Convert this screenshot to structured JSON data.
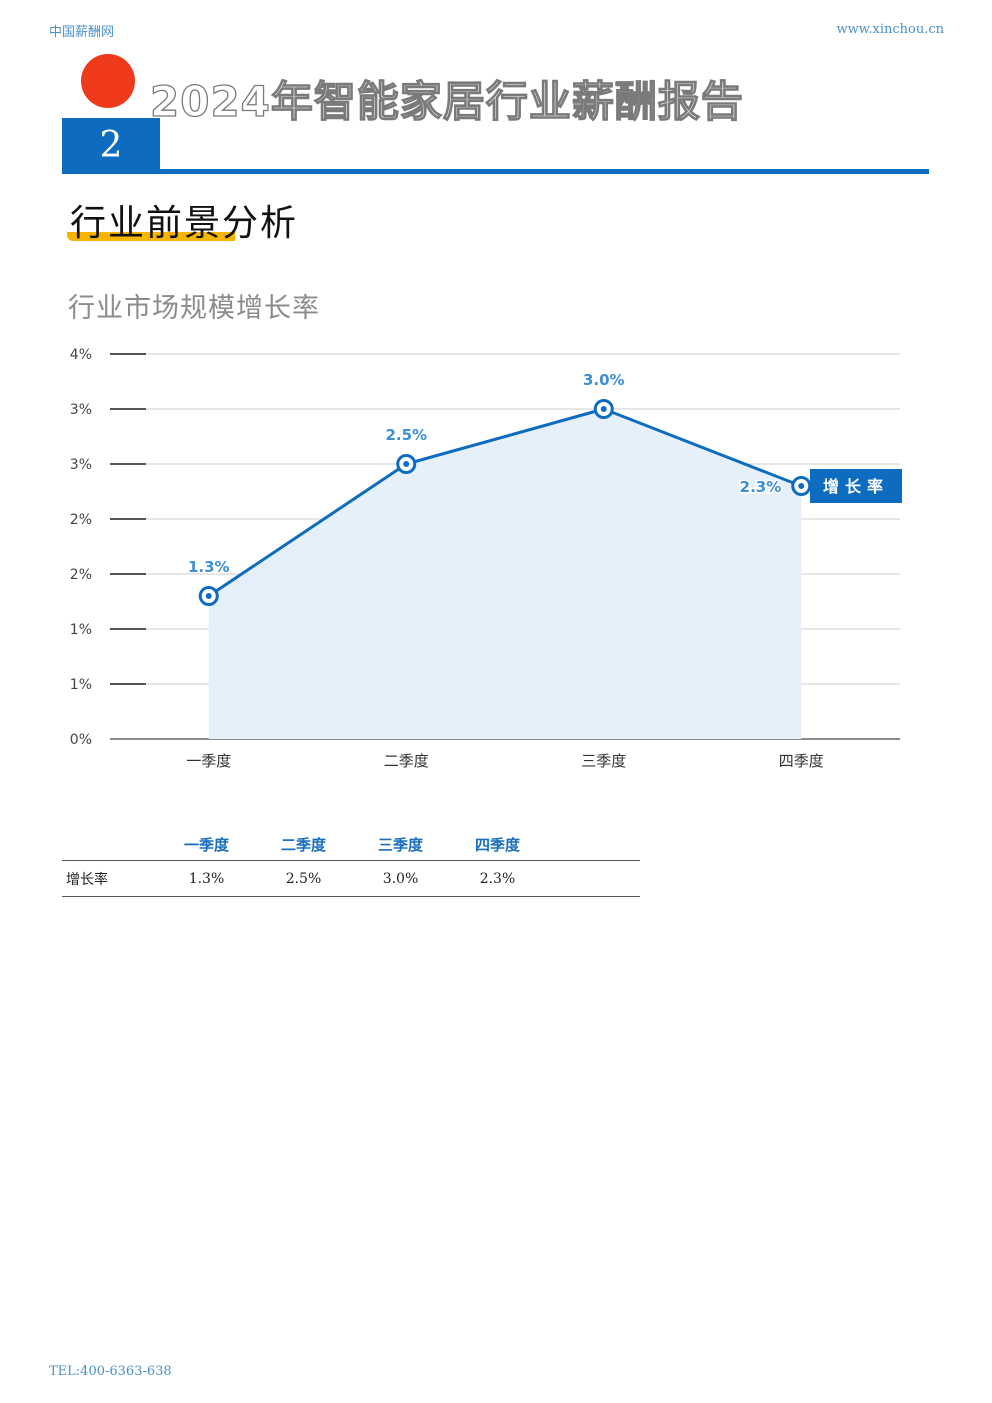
{
  "header": {
    "site_name": "中国薪酬网",
    "site_url": "www.xinchou.cn"
  },
  "report_title": "2024年智能家居行业薪酬报告",
  "section_number": "2",
  "section_title": "行业前景分析",
  "chart_title": "行业市场规模增长率",
  "chart_data": {
    "type": "area",
    "categories": [
      "一季度",
      "二季度",
      "三季度",
      "四季度"
    ],
    "series": [
      {
        "name": "增长率",
        "values": [
          1.3,
          2.5,
          3.0,
          2.3
        ],
        "labels": [
          "1.3%",
          "2.5%",
          "3.0%",
          "2.3%"
        ]
      }
    ],
    "y_ticks": [
      "0%",
      "1%",
      "1%",
      "2%",
      "2%",
      "3%",
      "3%",
      "4%"
    ],
    "ylim": [
      0,
      3.5
    ],
    "grid": true,
    "legend_position": "right",
    "colors": {
      "line": "#0d6cc0",
      "area": "#e6f0fa",
      "label": "#3d8fd6",
      "legend_bg": "#0d6cc0"
    }
  },
  "table": {
    "columns": [
      "一季度",
      "二季度",
      "三季度",
      "四季度"
    ],
    "rows": [
      {
        "label": "增长率",
        "values": [
          "1.3%",
          "2.5%",
          "3.0%",
          "2.3%"
        ]
      }
    ]
  },
  "footer": {
    "tel": "TEL:400-6363-638"
  }
}
